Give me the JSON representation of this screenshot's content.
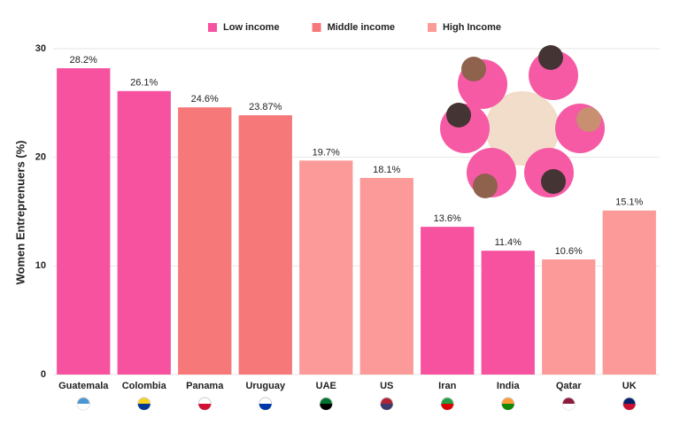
{
  "chart_data": {
    "type": "bar",
    "y_label": "Women Entreprenuers (%)",
    "categories": [
      "Guatemala",
      "Colombia",
      "Panama",
      "Uruguay",
      "UAE",
      "US",
      "Iran",
      "India",
      "Qatar",
      "UK"
    ],
    "series": [
      {
        "name": "Low income",
        "color": "#f652a0",
        "values": [
          28.2,
          26.1,
          null,
          null,
          null,
          null,
          13.6,
          11.4,
          null,
          null
        ],
        "value_labels": [
          "28.2%",
          "26.1%",
          null,
          null,
          null,
          null,
          "13.6%",
          "11.4%",
          null,
          null
        ]
      },
      {
        "name": "Middle income",
        "color": "#f67878",
        "values": [
          null,
          null,
          24.6,
          23.87,
          null,
          null,
          null,
          null,
          null,
          null
        ],
        "value_labels": [
          null,
          null,
          "24.6%",
          "23.87%",
          null,
          null,
          null,
          null,
          null,
          null
        ]
      },
      {
        "name": "High Income",
        "color": "#fb9a98",
        "values": [
          null,
          null,
          null,
          null,
          19.7,
          18.1,
          null,
          null,
          10.6,
          15.1
        ],
        "value_labels": [
          null,
          null,
          null,
          null,
          "19.7%",
          "18.1%",
          null,
          null,
          "10.6%",
          "15.1%"
        ]
      }
    ],
    "ylim": [
      0,
      30
    ],
    "yticks": [
      0,
      10,
      20,
      30
    ],
    "grid": true
  }
}
